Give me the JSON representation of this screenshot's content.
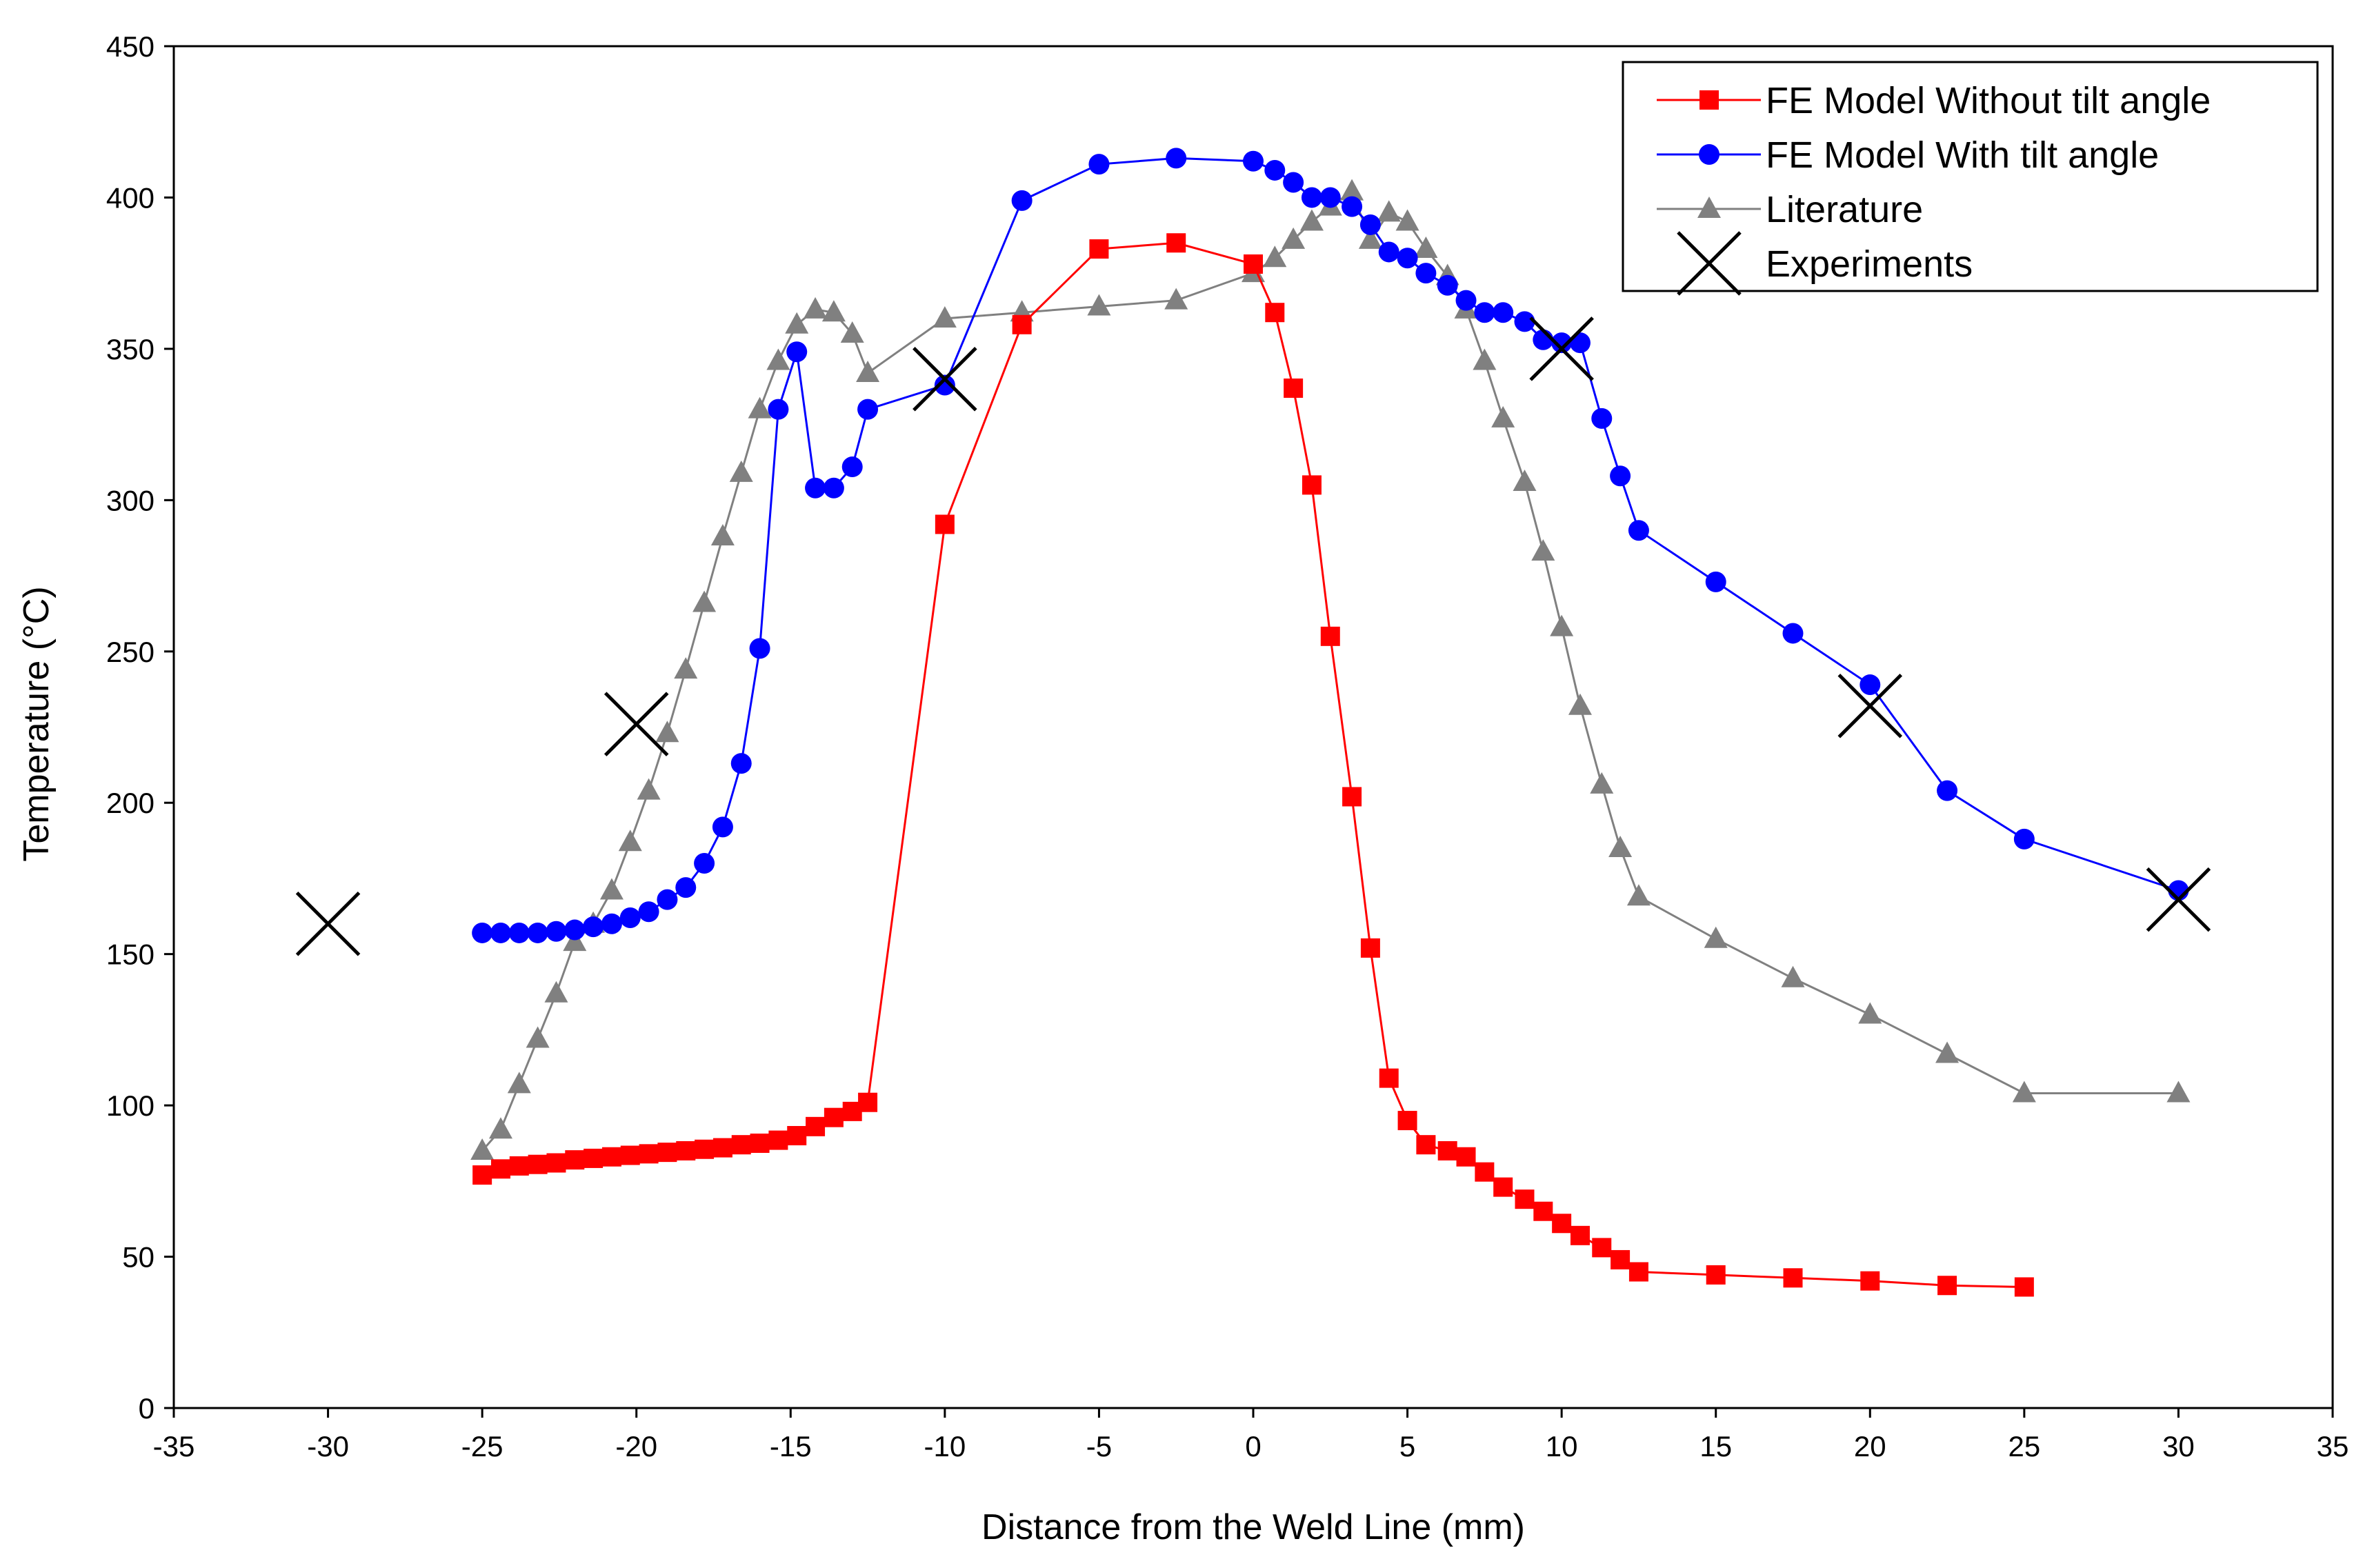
{
  "chart_data": {
    "type": "scatter",
    "title": "",
    "xlabel": "Distance from the Weld Line (mm)",
    "ylabel": "Temperature (°C)",
    "xlim": [
      -35,
      35
    ],
    "ylim": [
      0,
      450
    ],
    "xticks": [
      -35,
      -30,
      -25,
      -20,
      -15,
      -10,
      -5,
      0,
      5,
      10,
      15,
      20,
      25,
      30,
      35
    ],
    "yticks": [
      0,
      50,
      100,
      150,
      200,
      250,
      300,
      350,
      400,
      450
    ],
    "grid": false,
    "legend_position": "top-right",
    "series": [
      {
        "name": "FE Model Without tilt angle",
        "color": "#ff0000",
        "marker": "square",
        "line": true,
        "x": [
          -25,
          -24.4,
          -23.8,
          -23.2,
          -22.6,
          -22,
          -21.4,
          -20.8,
          -20.2,
          -19.6,
          -19,
          -18.4,
          -17.8,
          -17.2,
          -16.6,
          -16,
          -15.4,
          -14.8,
          -14.2,
          -13.6,
          -13,
          -12.5,
          -10,
          -7.5,
          -5,
          -2.5,
          0,
          0.7,
          1.3,
          1.9,
          2.5,
          3.2,
          3.8,
          4.4,
          5,
          5.6,
          6.3,
          6.9,
          7.5,
          8.1,
          8.8,
          9.4,
          10,
          10.6,
          11.3,
          11.9,
          12.5,
          15,
          17.5,
          20,
          22.5,
          25
        ],
        "y": [
          77,
          79,
          80,
          80.5,
          81,
          82,
          82.5,
          83,
          83.5,
          84,
          84.5,
          85,
          85.5,
          86,
          87,
          87.5,
          88.5,
          90,
          93,
          96,
          98,
          101,
          292,
          358,
          383,
          385,
          378,
          362,
          337,
          305,
          255,
          202,
          152,
          109,
          95,
          87,
          85,
          83,
          78,
          73,
          69,
          65,
          61,
          57,
          53,
          49,
          45,
          44,
          43,
          42,
          40.5,
          40
        ]
      },
      {
        "name": "FE Model With tilt angle",
        "color": "#0000ff",
        "marker": "circle",
        "line": true,
        "x": [
          -25,
          -24.4,
          -23.8,
          -23.2,
          -22.6,
          -22,
          -21.4,
          -20.8,
          -20.2,
          -19.6,
          -19,
          -18.4,
          -17.8,
          -17.2,
          -16.6,
          -16,
          -15.4,
          -14.8,
          -14.2,
          -13.6,
          -13,
          -12.5,
          -10,
          -7.5,
          -5,
          -2.5,
          0,
          0.7,
          1.3,
          1.9,
          2.5,
          3.2,
          3.8,
          4.4,
          5,
          5.6,
          6.3,
          6.9,
          7.5,
          8.1,
          8.8,
          9.4,
          10,
          10.6,
          11.3,
          11.9,
          12.5,
          15,
          17.5,
          20,
          22.5,
          25,
          30
        ],
        "y": [
          157,
          157,
          157,
          157,
          157.5,
          158,
          159,
          160,
          162,
          164,
          168,
          172,
          180,
          192,
          213,
          251,
          330,
          349,
          304,
          304,
          311,
          330,
          338,
          399,
          411,
          413,
          412,
          409,
          405,
          400,
          400,
          397,
          391,
          382,
          380,
          375,
          371,
          366,
          362,
          362,
          359,
          353,
          352,
          352,
          327,
          308,
          290,
          273,
          256,
          239,
          204,
          188,
          171
        ]
      },
      {
        "name": "Literature",
        "color": "#808080",
        "marker": "triangle",
        "line": true,
        "x": [
          -25,
          -24.4,
          -23.8,
          -23.2,
          -22.6,
          -22,
          -21.4,
          -20.8,
          -20.2,
          -19.6,
          -19,
          -18.4,
          -17.8,
          -17.2,
          -16.6,
          -16,
          -15.4,
          -14.8,
          -14.2,
          -13.6,
          -13,
          -12.5,
          -10,
          -7.5,
          -5,
          -2.5,
          0,
          0.7,
          1.3,
          1.9,
          2.5,
          3.2,
          3.8,
          4.4,
          5,
          5.6,
          6.3,
          6.9,
          7.5,
          8.1,
          8.8,
          9.4,
          10,
          10.6,
          11.3,
          11.9,
          12.5,
          15,
          17.5,
          20,
          22.5,
          25,
          30
        ],
        "y": [
          85,
          92,
          107,
          122,
          137,
          154,
          160,
          171,
          187,
          204,
          223,
          244,
          266,
          288,
          309,
          330,
          346,
          358,
          363,
          362,
          355,
          342,
          360,
          362,
          364,
          366,
          375,
          380,
          386,
          392,
          397,
          402,
          386,
          395,
          392,
          383,
          374,
          363,
          346,
          327,
          306,
          283,
          258,
          232,
          206,
          185,
          169,
          155,
          142,
          130,
          117,
          104,
          104
        ]
      },
      {
        "name": "Experiments",
        "color": "#000000",
        "marker": "x",
        "line": false,
        "x": [
          -30,
          -20,
          -10,
          10,
          20,
          30
        ],
        "y": [
          160,
          226,
          340,
          350,
          232,
          168
        ]
      }
    ]
  }
}
